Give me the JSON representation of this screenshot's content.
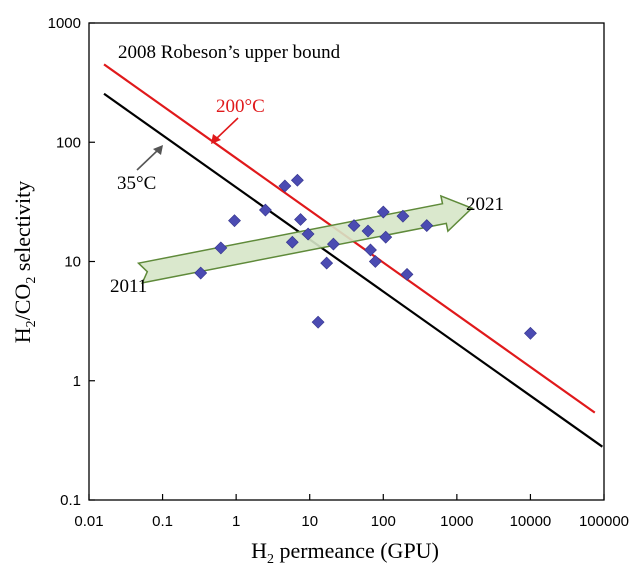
{
  "chart_data": {
    "type": "scatter",
    "title": "",
    "xlabel": {
      "prefix": "H",
      "sub": "2",
      "suffix": " permeance (GPU)"
    },
    "ylabel": {
      "p1": "H",
      "sub1": "2",
      "p2": "/CO",
      "sub2": "2",
      "p3": " selectivity"
    },
    "x_scale": "log",
    "y_scale": "log",
    "xlim": [
      0.01,
      100000
    ],
    "ylim": [
      0.1,
      1000
    ],
    "x_ticks": [
      "0.01",
      "0.1",
      "1",
      "10",
      "100",
      "1000",
      "10000",
      "100000"
    ],
    "y_ticks": [
      "0.1",
      "1",
      "10",
      "100",
      "1000"
    ],
    "grid": false,
    "colors": {
      "points": "#4b4bb2",
      "upper_bound_200C": "#e0191b",
      "upper_bound_35C": "#000000",
      "arrow_fill": "#d6e6c8",
      "arrow_stroke": "#5f8a3a"
    },
    "points": [
      {
        "x": 0.33,
        "y": 8
      },
      {
        "x": 0.62,
        "y": 13
      },
      {
        "x": 0.95,
        "y": 22
      },
      {
        "x": 2.5,
        "y": 27
      },
      {
        "x": 4.6,
        "y": 43
      },
      {
        "x": 5.8,
        "y": 14.5
      },
      {
        "x": 6.8,
        "y": 48
      },
      {
        "x": 7.5,
        "y": 22.5
      },
      {
        "x": 9.5,
        "y": 17
      },
      {
        "x": 13,
        "y": 3.1
      },
      {
        "x": 17,
        "y": 9.7
      },
      {
        "x": 21,
        "y": 14
      },
      {
        "x": 40,
        "y": 20
      },
      {
        "x": 62,
        "y": 18
      },
      {
        "x": 67,
        "y": 12.5
      },
      {
        "x": 78,
        "y": 10
      },
      {
        "x": 100,
        "y": 26
      },
      {
        "x": 108,
        "y": 16
      },
      {
        "x": 185,
        "y": 24
      },
      {
        "x": 210,
        "y": 7.8
      },
      {
        "x": 390,
        "y": 20
      },
      {
        "x": 10000,
        "y": 2.5
      }
    ],
    "lines": [
      {
        "name": "200°C",
        "start": {
          "x": 0.016,
          "y": 450
        },
        "end": {
          "x": 75000,
          "y": 0.54
        }
      },
      {
        "name": "35°C",
        "start": {
          "x": 0.016,
          "y": 255
        },
        "end": {
          "x": 95000,
          "y": 0.28
        }
      }
    ],
    "trend_arrow": {
      "start": {
        "x": 0.05,
        "y": 8
      },
      "end": {
        "x": 1600,
        "y": 28
      }
    },
    "annotations": {
      "title_label": "2008 Robeson’s upper bound",
      "label_200c": "200°C",
      "label_35c": "35°C",
      "label_2011": "2011",
      "label_2021": "2021"
    }
  }
}
